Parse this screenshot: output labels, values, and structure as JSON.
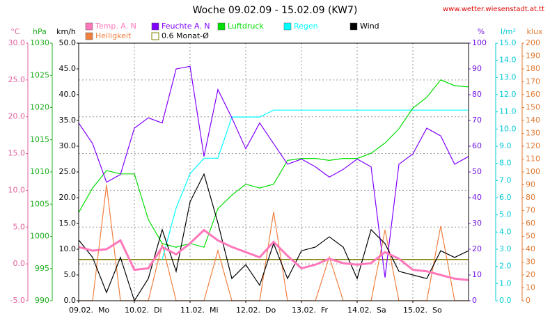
{
  "chart_data": {
    "type": "line",
    "title": "Woche 09.02.09 - 15.02.09 (KW7)",
    "source": "www.wetter.wiesenstadt.at.tt",
    "grid": true,
    "axes": [
      {
        "label": "°C",
        "color": "#e0609c",
        "side": "left",
        "lim": [
          -5,
          30
        ],
        "ticks": [
          {
            "value": -5,
            "label": "-5.0"
          },
          {
            "value": 0,
            "label": "0.0"
          },
          {
            "value": 5,
            "label": "5.0"
          },
          {
            "value": 10,
            "label": "10.0"
          },
          {
            "value": 15,
            "label": "15.0"
          },
          {
            "value": 20,
            "label": "20.0"
          },
          {
            "value": 25,
            "label": "25.0"
          },
          {
            "value": 30,
            "label": "30.0"
          }
        ]
      },
      {
        "label": "hPa",
        "color": "#20b020",
        "side": "left",
        "lim": [
          990,
          1030
        ],
        "ticks": [
          990,
          995,
          1000,
          1005,
          1010,
          1015,
          1020,
          1025,
          1030
        ]
      },
      {
        "label": "km/h",
        "color": "#000000",
        "side": "left",
        "lim": [
          0,
          50
        ],
        "ticks": [
          {
            "value": 0,
            "label": "0.0"
          },
          {
            "value": 5,
            "label": "5.0"
          },
          {
            "value": 10,
            "label": "10.0"
          },
          {
            "value": 15,
            "label": "15.0"
          },
          {
            "value": 20,
            "label": "20.0"
          },
          {
            "value": 25,
            "label": "25.0"
          },
          {
            "value": 30,
            "label": "30.0"
          },
          {
            "value": 35,
            "label": "35.0"
          },
          {
            "value": 40,
            "label": "40.0"
          },
          {
            "value": 45,
            "label": "45.0"
          },
          {
            "value": 50,
            "label": "50.0"
          }
        ]
      },
      {
        "label": "%",
        "color": "#7010e0",
        "side": "right",
        "lim": [
          0,
          100
        ],
        "ticks": [
          0,
          10,
          20,
          30,
          40,
          50,
          60,
          70,
          80,
          90,
          100
        ]
      },
      {
        "label": "l/m²",
        "color": "#00c8d8",
        "side": "right",
        "lim": [
          0,
          15
        ],
        "ticks": [
          {
            "value": 0,
            "label": "0.0"
          },
          {
            "value": 1,
            "label": "1.0"
          },
          {
            "value": 2,
            "label": "2.0"
          },
          {
            "value": 3,
            "label": "3.0"
          },
          {
            "value": 4,
            "label": "4.0"
          },
          {
            "value": 5,
            "label": "5.0"
          },
          {
            "value": 6,
            "label": "6.0"
          },
          {
            "value": 7,
            "label": "7.0"
          },
          {
            "value": 8,
            "label": "8.0"
          },
          {
            "value": 9,
            "label": "9.0"
          },
          {
            "value": 10,
            "label": "10.0"
          },
          {
            "value": 11,
            "label": "11.0"
          },
          {
            "value": 12,
            "label": "12.0"
          },
          {
            "value": 13,
            "label": "13.0"
          },
          {
            "value": 14,
            "label": "14.0"
          },
          {
            "value": 15,
            "label": "15.0"
          }
        ]
      },
      {
        "label": "klux",
        "color": "#e07830",
        "side": "right",
        "lim": [
          0,
          200
        ],
        "ticks": [
          0,
          10,
          20,
          30,
          40,
          50,
          60,
          70,
          80,
          90,
          100,
          110,
          120,
          130,
          140,
          150,
          160,
          170,
          180,
          190,
          200
        ]
      }
    ],
    "x": [
      0,
      6,
      12,
      18,
      24,
      30,
      36,
      42,
      48,
      54,
      60,
      66,
      72,
      78,
      84,
      90,
      96,
      102,
      108,
      114,
      120,
      126,
      132,
      138,
      144,
      150,
      156,
      162,
      168
    ],
    "xlim": [
      0,
      168
    ],
    "xticks": [
      {
        "value": 0,
        "label": "09.02.  Mo"
      },
      {
        "value": 24,
        "label": "10.02.  Di"
      },
      {
        "value": 48,
        "label": "11.02.  Mi"
      },
      {
        "value": 72,
        "label": "12.02.  Do"
      },
      {
        "value": 96,
        "label": "13.02.  Fr"
      },
      {
        "value": 120,
        "label": "14.02.  Sa"
      },
      {
        "value": 144,
        "label": "15.02.  So"
      }
    ],
    "series": [
      {
        "name": "Helligkeit",
        "color": "#f08040",
        "axis": 5,
        "values": [
          0,
          0,
          90,
          0,
          0,
          0,
          44,
          0,
          0,
          0,
          39,
          0,
          0,
          0,
          69,
          0,
          0,
          0,
          34,
          0,
          0,
          0,
          55,
          0,
          0,
          0,
          58,
          0,
          0
        ]
      },
      {
        "name": "Regen",
        "color": "#00ffff",
        "axis": 4,
        "values": [
          null,
          null,
          null,
          null,
          null,
          null,
          2.4,
          5.4,
          7.4,
          8.3,
          8.3,
          10.7,
          10.7,
          10.7,
          11.1,
          11.1,
          11.1,
          11.1,
          11.1,
          11.1,
          11.1,
          11.1,
          11.1,
          11.1,
          11.1,
          11.1,
          11.1,
          11.1,
          11.1
        ]
      },
      {
        "name": "Luftdruck",
        "color": "#00dd00",
        "axis": 1,
        "values": [
          1003.7,
          1007.5,
          1010.2,
          1009.7,
          1009.7,
          1002.6,
          998.9,
          998.3,
          998.9,
          998.3,
          1004.3,
          1006.4,
          1008.1,
          1007.5,
          1008.1,
          1011.8,
          1012.1,
          1012.1,
          1011.8,
          1012.1,
          1012.1,
          1012.9,
          1014.5,
          1016.7,
          1019.9,
          1021.6,
          1024.3,
          1023.4,
          1023.2
        ]
      },
      {
        "name": "Feuchte A. N",
        "color": "#8000ff",
        "axis": 3,
        "values": [
          69,
          61,
          46,
          49,
          67,
          71,
          69,
          90,
          91,
          56,
          82,
          71,
          59,
          69,
          61,
          53,
          55,
          52,
          48,
          51,
          55,
          52,
          9,
          53,
          57,
          67,
          64,
          53,
          56
        ]
      },
      {
        "name": "Wind",
        "color": "#000000",
        "axis": 2,
        "values": [
          11.8,
          8.4,
          1.6,
          8.4,
          0,
          4.3,
          13.8,
          5.7,
          19.2,
          24.6,
          15.1,
          4.3,
          7.0,
          3.0,
          11.1,
          4.3,
          9.7,
          10.4,
          12.4,
          10.4,
          4.3,
          13.8,
          11.1,
          5.7,
          5.0,
          4.3,
          9.7,
          8.4,
          9.7
        ]
      },
      {
        "name": "Temp. A. N",
        "color": "#ff77bb",
        "axis": 0,
        "values": [
          2.3,
          1.8,
          2.0,
          3.2,
          -0.8,
          -0.6,
          2.3,
          1.3,
          2.8,
          4.6,
          3.2,
          2.3,
          1.6,
          0.9,
          3.0,
          1.1,
          -0.6,
          -0.1,
          0.7,
          0.1,
          -0.1,
          0.1,
          1.6,
          0.7,
          -0.8,
          -1.0,
          -1.5,
          -2.0,
          -2.2
        ]
      }
    ],
    "reference": {
      "name": "0.6 Monat-Ø",
      "value": 0.6,
      "axis": 0,
      "color": "#808000"
    }
  }
}
